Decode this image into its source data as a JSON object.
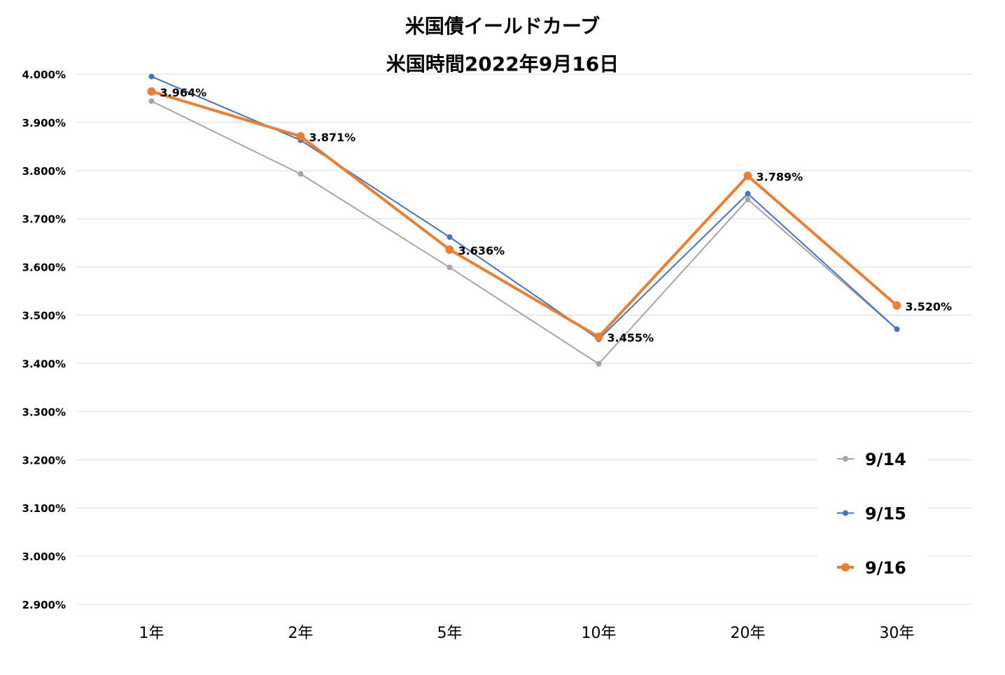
{
  "chart_data": {
    "type": "line",
    "title": "米国債イールドカーブ",
    "subtitle": "米国時間2022年9月16日",
    "categories": [
      "1年",
      "2年",
      "5年",
      "10年",
      "20年",
      "30年"
    ],
    "y_ticks": [
      "2.900%",
      "3.000%",
      "3.100%",
      "3.200%",
      "3.300%",
      "3.400%",
      "3.500%",
      "3.600%",
      "3.700%",
      "3.800%",
      "3.900%",
      "4.000%"
    ],
    "ylim": [
      2.9,
      4.0
    ],
    "grid": true,
    "legend_position": "bottom-right",
    "series": [
      {
        "name": "9/14",
        "color": "#A5A5A5",
        "values": [
          3.944,
          3.793,
          3.599,
          3.399,
          3.74,
          3.471
        ]
      },
      {
        "name": "9/15",
        "color": "#4472C4",
        "values": [
          3.995,
          3.863,
          3.662,
          3.45,
          3.752,
          3.471
        ]
      },
      {
        "name": "9/16",
        "color": "#ED7D31",
        "values": [
          3.964,
          3.871,
          3.636,
          3.455,
          3.789,
          3.52
        ],
        "data_labels": [
          "3.964%",
          "3.871%",
          "3.636%",
          "3.455%",
          "3.789%",
          "3.520%"
        ]
      }
    ]
  }
}
